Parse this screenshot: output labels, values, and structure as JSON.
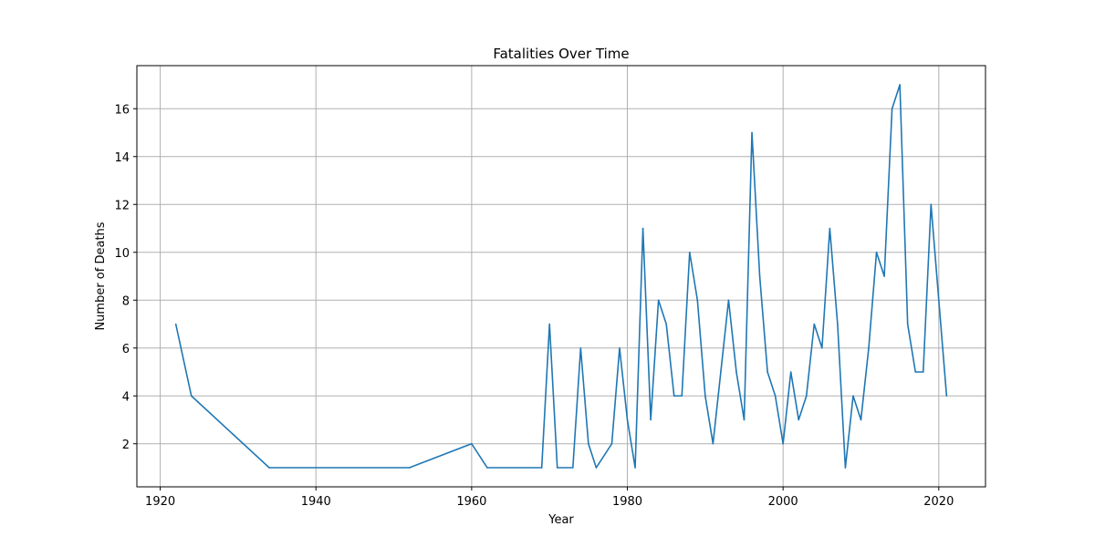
{
  "chart_data": {
    "type": "line",
    "title": "Fatalities Over Time",
    "xlabel": "Year",
    "ylabel": "Number of Deaths",
    "xlim": [
      1917,
      2026
    ],
    "ylim": [
      0.2,
      17.8
    ],
    "xticks": [
      1920,
      1940,
      1960,
      1980,
      2000,
      2020
    ],
    "yticks": [
      2,
      4,
      6,
      8,
      10,
      12,
      14,
      16
    ],
    "grid": true,
    "legend": "none",
    "series": [
      {
        "color": "#1f77b4",
        "x": [
          1922,
          1924,
          1934,
          1952,
          1960,
          1962,
          1969,
          1970,
          1971,
          1973,
          1974,
          1975,
          1976,
          1978,
          1979,
          1980,
          1981,
          1982,
          1983,
          1984,
          1985,
          1986,
          1987,
          1988,
          1989,
          1990,
          1991,
          1992,
          1993,
          1994,
          1995,
          1996,
          1997,
          1998,
          1999,
          2000,
          2001,
          2002,
          2003,
          2004,
          2005,
          2006,
          2007,
          2008,
          2009,
          2010,
          2011,
          2012,
          2013,
          2014,
          2015,
          2016,
          2017,
          2018,
          2019,
          2020,
          2021
        ],
        "y": [
          7,
          4,
          1,
          1,
          2,
          1,
          1,
          7,
          1,
          1,
          6,
          2,
          1,
          2,
          6,
          3,
          1,
          11,
          3,
          8,
          7,
          4,
          4,
          10,
          8,
          4,
          2,
          5,
          8,
          5,
          3,
          15,
          9,
          5,
          4,
          2,
          5,
          3,
          4,
          7,
          6,
          11,
          7,
          1,
          4,
          3,
          6,
          10,
          9,
          16,
          17,
          7,
          5,
          5,
          12,
          8,
          4
        ]
      }
    ]
  }
}
